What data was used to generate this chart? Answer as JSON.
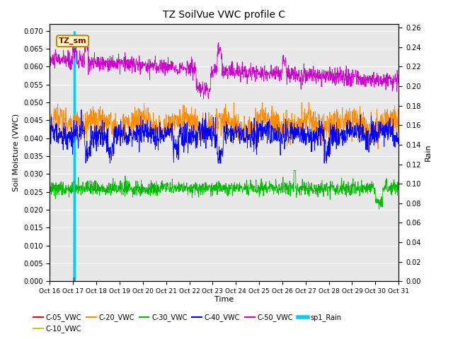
{
  "title": "TZ SoilVue VWC profile C",
  "xlabel": "Time",
  "ylabel_left": "Soil Moisture (VWC)",
  "ylabel_right": "Rain",
  "annotation_text": "TZ_sm",
  "ylim_left": [
    0.0,
    0.072
  ],
  "ylim_right": [
    0.0,
    0.264
  ],
  "yticks_left": [
    0.0,
    0.005,
    0.01,
    0.015,
    0.02,
    0.025,
    0.03,
    0.035,
    0.04,
    0.045,
    0.05,
    0.055,
    0.06,
    0.065,
    0.07
  ],
  "yticks_right": [
    0.0,
    0.02,
    0.04,
    0.06,
    0.08,
    0.1,
    0.12,
    0.14,
    0.16,
    0.18,
    0.2,
    0.22,
    0.24,
    0.26
  ],
  "xtick_labels": [
    "Oct 16",
    "Oct 17",
    "Oct 18",
    "Oct 19",
    "Oct 20",
    "Oct 21",
    "Oct 22",
    "Oct 23",
    "Oct 24",
    "Oct 25",
    "Oct 26",
    "Oct 27",
    "Oct 28",
    "Oct 29",
    "Oct 30",
    "Oct 31"
  ],
  "colors": {
    "C05": "#ff0000",
    "C10": "#cccc00",
    "C20": "#ff8c00",
    "C30": "#00bb00",
    "C40": "#0000ff",
    "C50": "#cc00cc",
    "Rain": "#00ccff",
    "bg": "#e8e8e8",
    "annotation_bg": "#ffffcc",
    "annotation_border": "#cc8800"
  },
  "n_points": 1440
}
